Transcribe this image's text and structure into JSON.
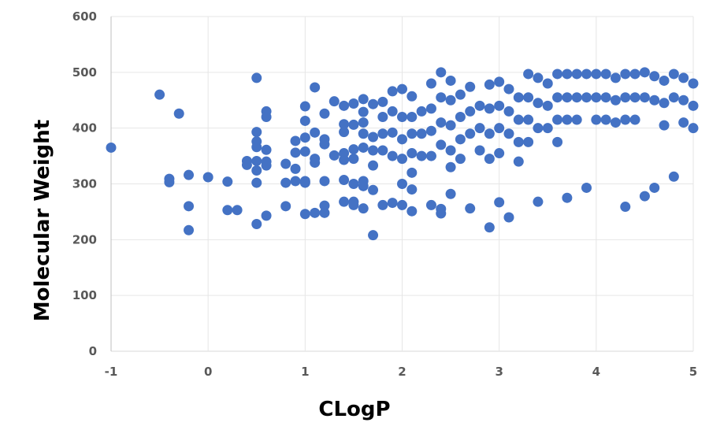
{
  "chart_data": {
    "type": "scatter",
    "title": "",
    "xlabel": "CLogP",
    "ylabel": "Molecular Weight",
    "xlim": [
      -1,
      5
    ],
    "ylim": [
      0,
      600
    ],
    "xticks": [
      -1,
      0,
      1,
      2,
      3,
      4,
      5
    ],
    "yticks": [
      0,
      100,
      200,
      300,
      400,
      500,
      600
    ],
    "grid": "horizontal and vertical light gray",
    "legend": "none",
    "marker_color": "#4472C4",
    "series": [
      {
        "x": [
          -1.0,
          -0.5,
          -0.3,
          -0.4,
          -0.4,
          -0.2,
          -0.2,
          -0.2,
          0.0,
          0.2,
          0.2,
          0.3,
          0.4,
          0.4,
          0.5,
          0.5,
          0.5,
          0.5,
          0.5,
          0.5,
          0.5,
          0.5,
          0.6,
          0.6,
          0.6,
          0.6,
          0.6,
          0.6,
          0.8,
          0.8,
          0.8,
          0.9,
          0.9,
          0.9,
          0.9,
          1.0,
          1.0,
          1.0,
          1.0,
          1.0,
          1.0,
          1.0,
          1.1,
          1.1,
          1.1,
          1.1,
          1.1,
          1.2,
          1.2,
          1.2,
          1.2,
          1.2,
          1.2,
          1.3,
          1.3,
          1.4,
          1.4,
          1.4,
          1.4,
          1.4,
          1.4,
          1.4,
          1.5,
          1.5,
          1.5,
          1.5,
          1.5,
          1.5,
          1.5,
          1.6,
          1.6,
          1.6,
          1.6,
          1.6,
          1.6,
          1.6,
          1.6,
          1.7,
          1.7,
          1.7,
          1.7,
          1.7,
          1.7,
          1.8,
          1.8,
          1.8,
          1.8,
          1.8,
          1.9,
          1.9,
          1.9,
          1.9,
          1.9,
          2.0,
          2.0,
          2.0,
          2.0,
          2.0,
          2.0,
          2.1,
          2.1,
          2.1,
          2.1,
          2.1,
          2.1,
          2.1,
          2.2,
          2.2,
          2.2,
          2.3,
          2.3,
          2.3,
          2.3,
          2.3,
          2.4,
          2.4,
          2.4,
          2.4,
          2.4,
          2.4,
          2.5,
          2.5,
          2.5,
          2.5,
          2.5,
          2.5,
          2.6,
          2.6,
          2.6,
          2.6,
          2.7,
          2.7,
          2.7,
          2.7,
          2.8,
          2.8,
          2.8,
          2.9,
          2.9,
          2.9,
          2.9,
          2.9,
          3.0,
          3.0,
          3.0,
          3.0,
          3.0,
          3.1,
          3.1,
          3.1,
          3.1,
          3.2,
          3.2,
          3.2,
          3.2,
          3.3,
          3.3,
          3.3,
          3.3,
          3.4,
          3.4,
          3.4,
          3.4,
          3.5,
          3.5,
          3.5,
          3.6,
          3.6,
          3.6,
          3.6,
          3.7,
          3.7,
          3.7,
          3.7,
          3.8,
          3.8,
          3.8,
          3.9,
          3.9,
          3.9,
          4.0,
          4.0,
          4.0,
          4.1,
          4.1,
          4.1,
          4.2,
          4.2,
          4.2,
          4.3,
          4.3,
          4.3,
          4.3,
          4.4,
          4.4,
          4.4,
          4.5,
          4.5,
          4.5,
          4.6,
          4.6,
          4.6,
          4.7,
          4.7,
          4.7,
          4.8,
          4.8,
          4.8,
          4.9,
          4.9,
          4.9,
          5.0,
          5.0,
          5.0
        ],
        "y": [
          365,
          460,
          426,
          309,
          303,
          316,
          260,
          217,
          312,
          304,
          253,
          253,
          341,
          334,
          490,
          393,
          376,
          366,
          341,
          324,
          302,
          228,
          430,
          420,
          361,
          340,
          333,
          243,
          336,
          302,
          260,
          356,
          377,
          327,
          305,
          439,
          413,
          383,
          358,
          305,
          302,
          246,
          473,
          392,
          345,
          338,
          248,
          426,
          380,
          371,
          305,
          261,
          248,
          448,
          351,
          440,
          407,
          393,
          355,
          343,
          307,
          268,
          444,
          406,
          362,
          345,
          300,
          268,
          262,
          452,
          429,
          410,
          390,
          365,
          305,
          296,
          256,
          443,
          384,
          360,
          333,
          289,
          208,
          447,
          420,
          390,
          360,
          262,
          466,
          430,
          392,
          350,
          266,
          470,
          420,
          380,
          345,
          300,
          262,
          457,
          420,
          390,
          355,
          320,
          290,
          251,
          430,
          390,
          350,
          480,
          435,
          395,
          350,
          262,
          500,
          455,
          410,
          370,
          255,
          247,
          485,
          450,
          405,
          360,
          330,
          282,
          460,
          420,
          380,
          345,
          474,
          430,
          390,
          256,
          440,
          400,
          360,
          478,
          435,
          390,
          345,
          222,
          483,
          440,
          400,
          355,
          267,
          470,
          430,
          390,
          240,
          455,
          415,
          375,
          340,
          497,
          455,
          415,
          375,
          490,
          445,
          400,
          268,
          480,
          440,
          400,
          497,
          455,
          415,
          375,
          497,
          455,
          415,
          275,
          497,
          455,
          415,
          497,
          455,
          293,
          497,
          455,
          415,
          497,
          455,
          415,
          490,
          450,
          410,
          497,
          455,
          415,
          259,
          497,
          455,
          415,
          500,
          455,
          278,
          493,
          450,
          293,
          485,
          445,
          405,
          497,
          455,
          313,
          490,
          450,
          410,
          480,
          440,
          400
        ]
      }
    ]
  }
}
